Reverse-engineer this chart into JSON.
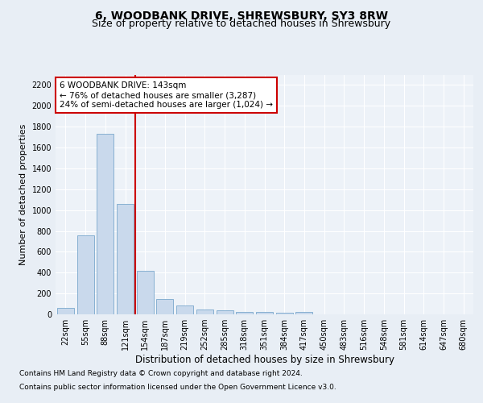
{
  "title": "6, WOODBANK DRIVE, SHREWSBURY, SY3 8RW",
  "subtitle": "Size of property relative to detached houses in Shrewsbury",
  "xlabel": "Distribution of detached houses by size in Shrewsbury",
  "ylabel": "Number of detached properties",
  "bar_labels": [
    "22sqm",
    "55sqm",
    "88sqm",
    "121sqm",
    "154sqm",
    "187sqm",
    "219sqm",
    "252sqm",
    "285sqm",
    "318sqm",
    "351sqm",
    "384sqm",
    "417sqm",
    "450sqm",
    "483sqm",
    "516sqm",
    "548sqm",
    "581sqm",
    "614sqm",
    "647sqm",
    "680sqm"
  ],
  "bar_values": [
    60,
    760,
    1730,
    1060,
    420,
    150,
    85,
    45,
    35,
    25,
    20,
    15,
    20,
    0,
    0,
    0,
    0,
    0,
    0,
    0,
    0
  ],
  "bar_color": "#c9d9ec",
  "bar_edge_color": "#7aa8cc",
  "property_line_x": 3.5,
  "annotation_line0": "6 WOODBANK DRIVE: 143sqm",
  "annotation_line1": "← 76% of detached houses are smaller (3,287)",
  "annotation_line2": "24% of semi-detached houses are larger (1,024) →",
  "annotation_box_color": "#ffffff",
  "annotation_box_edge_color": "#cc0000",
  "ylim": [
    0,
    2300
  ],
  "yticks": [
    0,
    200,
    400,
    600,
    800,
    1000,
    1200,
    1400,
    1600,
    1800,
    2000,
    2200
  ],
  "footer_line1": "Contains HM Land Registry data © Crown copyright and database right 2024.",
  "footer_line2": "Contains public sector information licensed under the Open Government Licence v3.0.",
  "background_color": "#e8eef5",
  "plot_bg_color": "#edf2f8",
  "grid_color": "#ffffff",
  "red_line_color": "#cc0000",
  "title_fontsize": 10,
  "subtitle_fontsize": 9,
  "ylabel_fontsize": 8,
  "xlabel_fontsize": 8.5,
  "tick_fontsize": 7,
  "annotation_fontsize": 7.5,
  "footer_fontsize": 6.5
}
